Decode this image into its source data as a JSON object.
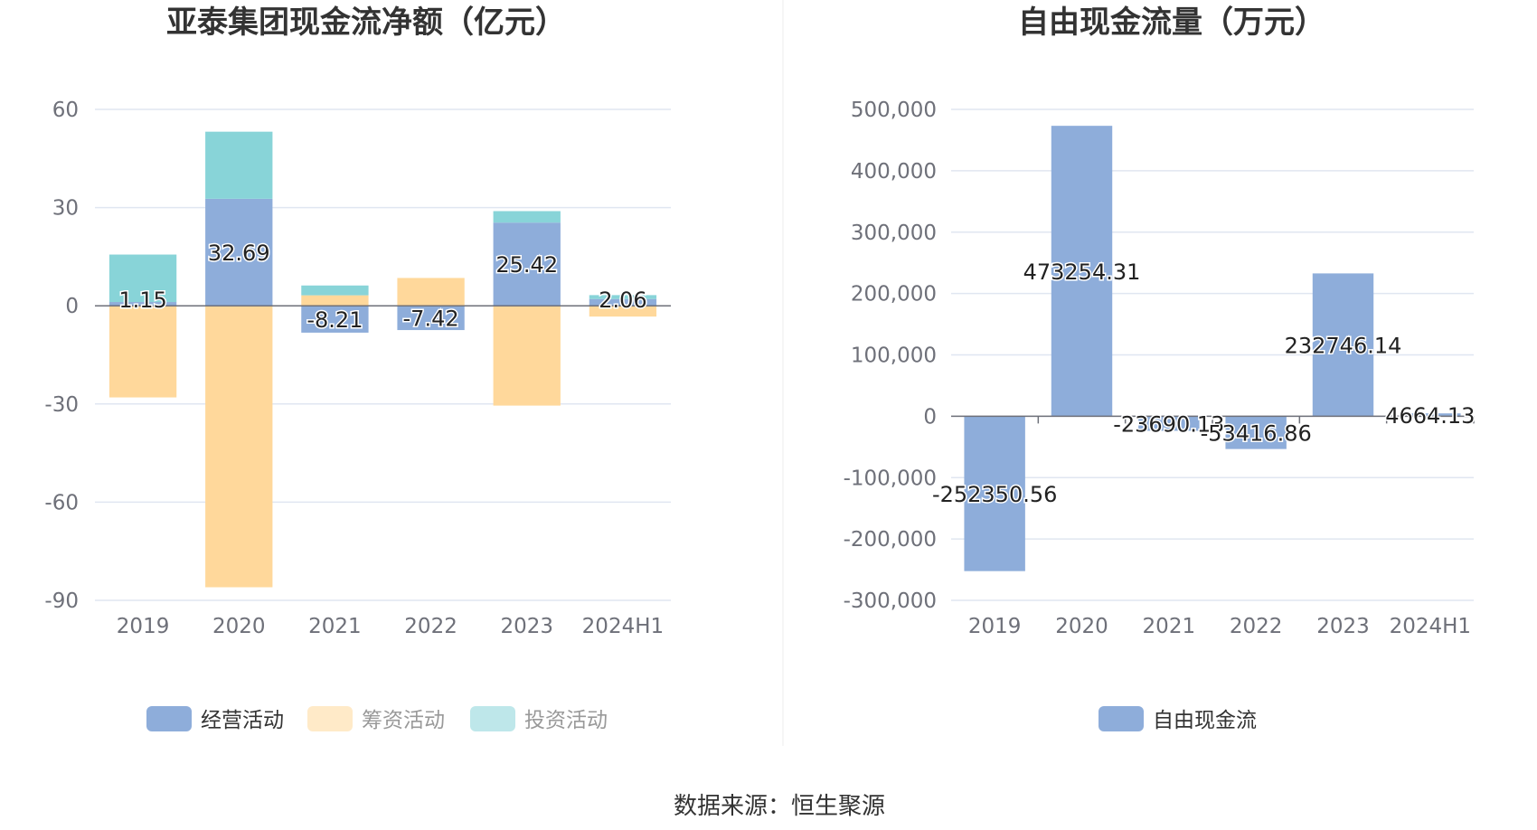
{
  "colors": {
    "operating": "#8eadda",
    "financing": "#ffd89b",
    "investing": "#88d4d8",
    "free_cash_flow": "#8eadda",
    "grid": "#e0e6f1",
    "axis": "#6e7079"
  },
  "source_text": "数据来源：恒生聚源",
  "chart_data": [
    {
      "type": "bar",
      "stacked": true,
      "title": "亚泰集团现金流净额（亿元）",
      "categories": [
        "2019",
        "2020",
        "2021",
        "2022",
        "2023",
        "2024H1"
      ],
      "ylim": [
        -90,
        60
      ],
      "yticks": [
        60,
        30,
        0,
        -30,
        -60,
        -90
      ],
      "grid": true,
      "legend_position": "bottom",
      "series": [
        {
          "name": "经营活动",
          "color_key": "operating",
          "values": [
            1.15,
            32.69,
            -8.21,
            -7.42,
            25.42,
            2.06
          ],
          "labels": [
            "1.15",
            "32.69",
            "-8.21",
            "-7.42",
            "25.42",
            "2.06"
          ]
        },
        {
          "name": "筹资活动",
          "color_key": "financing",
          "values": [
            -28.0,
            -86.0,
            3.2,
            8.5,
            -30.5,
            -3.3
          ]
        },
        {
          "name": "投资活动",
          "color_key": "investing",
          "values": [
            14.5,
            20.5,
            3.0,
            0,
            3.5,
            1.2
          ]
        }
      ]
    },
    {
      "type": "bar",
      "title": "自由现金流量（万元）",
      "categories": [
        "2019",
        "2020",
        "2021",
        "2022",
        "2023",
        "2024H1"
      ],
      "ylim": [
        -300000,
        500000
      ],
      "yticks": [
        "500,000",
        "400,000",
        "300,000",
        "200,000",
        "100,000",
        "0",
        "-100,000",
        "-200,000",
        "-300,000"
      ],
      "yticks_values": [
        500000,
        400000,
        300000,
        200000,
        100000,
        0,
        -100000,
        -200000,
        -300000
      ],
      "grid": true,
      "legend_position": "bottom",
      "series": [
        {
          "name": "自由现金流",
          "color_key": "free_cash_flow",
          "values": [
            -252350.56,
            473254.31,
            -23690.13,
            -53416.86,
            232746.14,
            4664.13
          ],
          "labels": [
            "-252350.56",
            "473254.31",
            "-23690.13",
            "-53416.86",
            "232746.14",
            "4664.13"
          ]
        }
      ]
    }
  ]
}
